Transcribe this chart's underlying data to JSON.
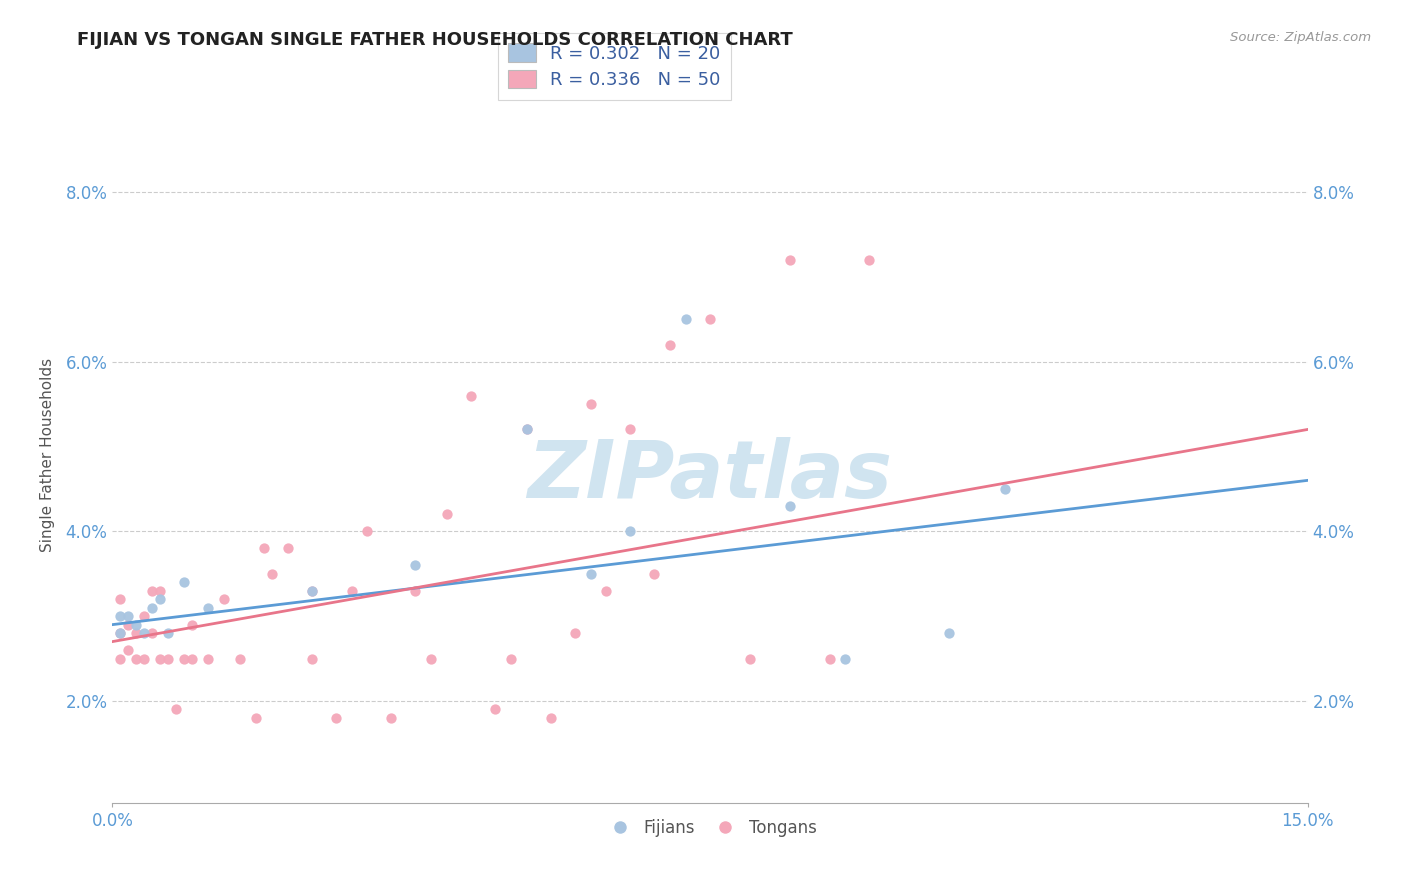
{
  "title": "FIJIAN VS TONGAN SINGLE FATHER HOUSEHOLDS CORRELATION CHART",
  "source_text": "Source: ZipAtlas.com",
  "ylabel": "Single Father Households",
  "xlim": [
    0.0,
    0.15
  ],
  "ylim": [
    0.008,
    0.09
  ],
  "xticks": [
    0.0,
    0.15
  ],
  "xtick_labels": [
    "0.0%",
    "15.0%"
  ],
  "yticks": [
    0.02,
    0.04,
    0.06,
    0.08
  ],
  "ytick_labels": [
    "2.0%",
    "4.0%",
    "6.0%",
    "8.0%"
  ],
  "fijian_color": "#a8c4e0",
  "tongan_color": "#f4a7b9",
  "fijian_line_color": "#5b9bd5",
  "tongan_line_color": "#e8758a",
  "legend_text_color": "#3b5fa0",
  "tick_label_color": "#5b9bd5",
  "watermark_text": "ZIPatlas",
  "watermark_color": "#d0e4f0",
  "R_fijian": 0.302,
  "N_fijian": 20,
  "R_tongan": 0.336,
  "N_tongan": 50,
  "fijian_x": [
    0.001,
    0.001,
    0.002,
    0.003,
    0.004,
    0.005,
    0.006,
    0.007,
    0.009,
    0.012,
    0.025,
    0.038,
    0.052,
    0.06,
    0.065,
    0.072,
    0.085,
    0.092,
    0.105,
    0.112
  ],
  "fijian_y": [
    0.03,
    0.028,
    0.03,
    0.029,
    0.028,
    0.031,
    0.032,
    0.028,
    0.034,
    0.031,
    0.033,
    0.036,
    0.052,
    0.035,
    0.04,
    0.065,
    0.043,
    0.025,
    0.028,
    0.045
  ],
  "tongan_x": [
    0.001,
    0.001,
    0.001,
    0.002,
    0.002,
    0.003,
    0.003,
    0.004,
    0.004,
    0.005,
    0.005,
    0.006,
    0.006,
    0.007,
    0.008,
    0.009,
    0.01,
    0.01,
    0.012,
    0.014,
    0.016,
    0.018,
    0.019,
    0.02,
    0.022,
    0.025,
    0.025,
    0.028,
    0.03,
    0.032,
    0.035,
    0.038,
    0.04,
    0.042,
    0.045,
    0.048,
    0.05,
    0.052,
    0.055,
    0.058,
    0.06,
    0.062,
    0.065,
    0.068,
    0.07,
    0.075,
    0.08,
    0.085,
    0.09,
    0.095
  ],
  "tongan_y": [
    0.028,
    0.025,
    0.032,
    0.026,
    0.029,
    0.025,
    0.028,
    0.025,
    0.03,
    0.033,
    0.028,
    0.025,
    0.033,
    0.025,
    0.019,
    0.025,
    0.025,
    0.029,
    0.025,
    0.032,
    0.025,
    0.018,
    0.038,
    0.035,
    0.038,
    0.033,
    0.025,
    0.018,
    0.033,
    0.04,
    0.018,
    0.033,
    0.025,
    0.042,
    0.056,
    0.019,
    0.025,
    0.052,
    0.018,
    0.028,
    0.055,
    0.033,
    0.052,
    0.035,
    0.062,
    0.065,
    0.025,
    0.072,
    0.025,
    0.072
  ],
  "fijian_line_x": [
    0.0,
    0.15
  ],
  "fijian_line_y": [
    0.029,
    0.046
  ],
  "tongan_line_x": [
    0.0,
    0.15
  ],
  "tongan_line_y": [
    0.027,
    0.052
  ]
}
